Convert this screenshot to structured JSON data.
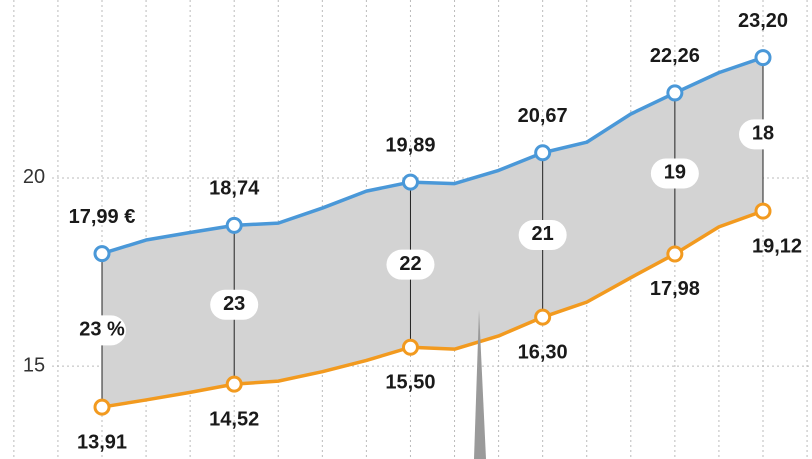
{
  "chart_data": {
    "type": "line",
    "categories": [
      null,
      null,
      null,
      null,
      null,
      null,
      null,
      null,
      null,
      null,
      null,
      null,
      null,
      null,
      null,
      null
    ],
    "series": [
      {
        "color": "#4a98d8",
        "values": [
          17.99,
          18.35,
          18.55,
          18.74,
          18.8,
          19.2,
          19.65,
          19.89,
          19.85,
          20.2,
          20.67,
          20.95,
          21.7,
          22.26,
          22.8,
          23.2
        ],
        "value_labels": [
          "17,99 €",
          null,
          null,
          "18,74",
          null,
          null,
          null,
          "19,89",
          null,
          null,
          "20,67",
          null,
          null,
          "22,26",
          null,
          "23,20"
        ]
      },
      {
        "color": "#f29a1f",
        "values": [
          13.91,
          14.1,
          14.3,
          14.52,
          14.6,
          14.85,
          15.15,
          15.5,
          15.45,
          15.8,
          16.3,
          16.7,
          17.35,
          17.98,
          18.7,
          19.12
        ],
        "value_labels": [
          "13,91",
          null,
          null,
          "14,52",
          null,
          null,
          null,
          "15,50",
          null,
          null,
          "16,30",
          null,
          null,
          "17,98",
          null,
          "19,12"
        ]
      }
    ],
    "spread": {
      "values": [
        23,
        null,
        null,
        23,
        null,
        null,
        null,
        22,
        null,
        null,
        21,
        null,
        null,
        19,
        null,
        18
      ],
      "value_labels": [
        "23 %",
        null,
        null,
        null,
        null,
        null,
        null,
        null,
        null,
        null,
        null,
        null,
        null,
        null,
        null,
        null
      ]
    },
    "ylim": [
      12.53,
      24.73
    ],
    "yticks": [
      15,
      20
    ],
    "grid": true,
    "fill_color": "#d3d3d3"
  }
}
